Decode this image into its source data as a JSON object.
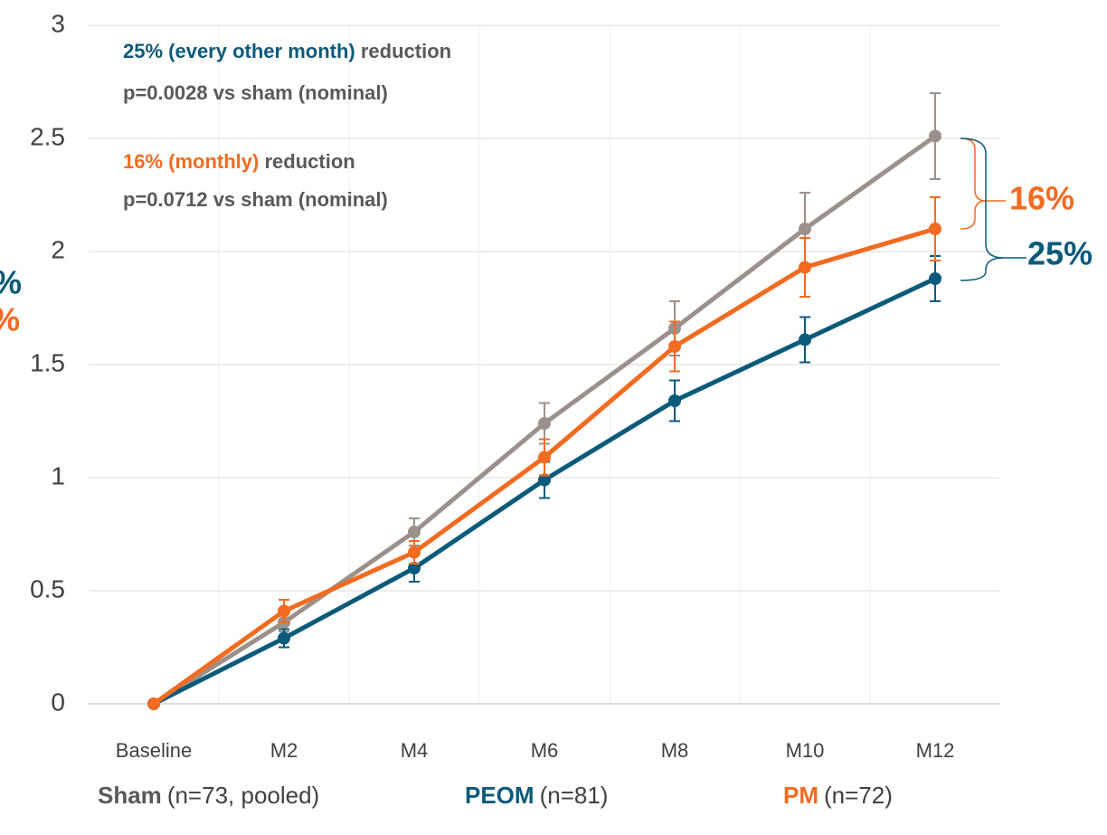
{
  "chart_data": {
    "type": "line",
    "categories": [
      "Baseline",
      "M2",
      "M4",
      "M6",
      "M8",
      "M10",
      "M12"
    ],
    "series": [
      {
        "name": "Sham",
        "note": "(n=73, pooled)",
        "color": "#9c918a",
        "values": [
          0,
          0.36,
          0.76,
          1.24,
          1.66,
          2.1,
          2.51
        ],
        "errors": [
          0,
          0.04,
          0.06,
          0.09,
          0.12,
          0.16,
          0.19
        ]
      },
      {
        "name": "PEOM",
        "note": "(n=81)",
        "color": "#0b5a7a",
        "values": [
          0,
          0.29,
          0.6,
          0.99,
          1.34,
          1.61,
          1.88
        ],
        "errors": [
          0,
          0.04,
          0.06,
          0.08,
          0.09,
          0.1,
          0.1
        ]
      },
      {
        "name": "PM",
        "note": "(n=72)",
        "color": "#f26b21",
        "values": [
          0,
          0.41,
          0.67,
          1.09,
          1.58,
          1.93,
          2.1
        ],
        "errors": [
          0,
          0.05,
          0.05,
          0.08,
          0.11,
          0.13,
          0.14
        ]
      }
    ],
    "ylim": [
      0,
      3
    ],
    "yticks": [
      0,
      0.5,
      1,
      1.5,
      2,
      2.5,
      3
    ],
    "grid": true,
    "annotations": {
      "peom_head": "25% (every other month)",
      "peom_tail": " reduction",
      "peom_p": "p=0.0028 vs sham (nominal)",
      "pm_head": "16% (monthly)",
      "pm_tail": " reduction",
      "pm_p": "p=0.0712 vs sham (nominal)",
      "pm_bracket": "16%",
      "peom_bracket": "25%",
      "cut_peom": "%",
      "cut_pm": "%"
    }
  }
}
